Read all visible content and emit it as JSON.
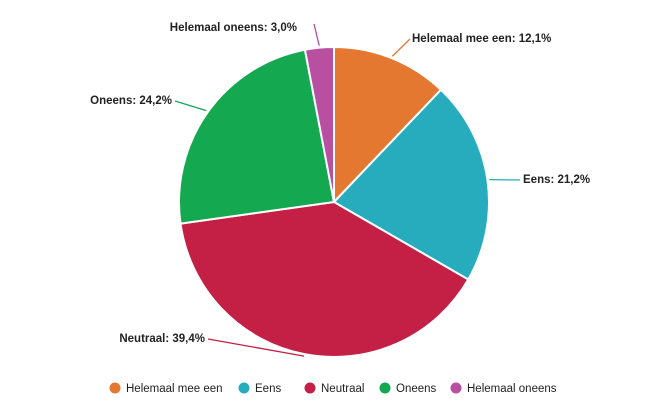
{
  "chart_data": {
    "type": "pie",
    "categories": [
      "Helemaal mee een",
      "Eens",
      "Neutraal",
      "Oneens",
      "Helemaal oneens"
    ],
    "values": [
      12.1,
      21.2,
      39.4,
      24.2,
      3.0
    ],
    "data_labels": [
      "Helemaal mee een: 12,1%",
      "Eens: 21,2%",
      "Neutraal: 39,4%",
      "Oneens: 24,2%",
      "Helemaal oneens: 3,0%"
    ],
    "colors": [
      "#e47830",
      "#27acbd",
      "#c41f45",
      "#14a850",
      "#b94fa0"
    ],
    "legend_position": "bottom"
  }
}
